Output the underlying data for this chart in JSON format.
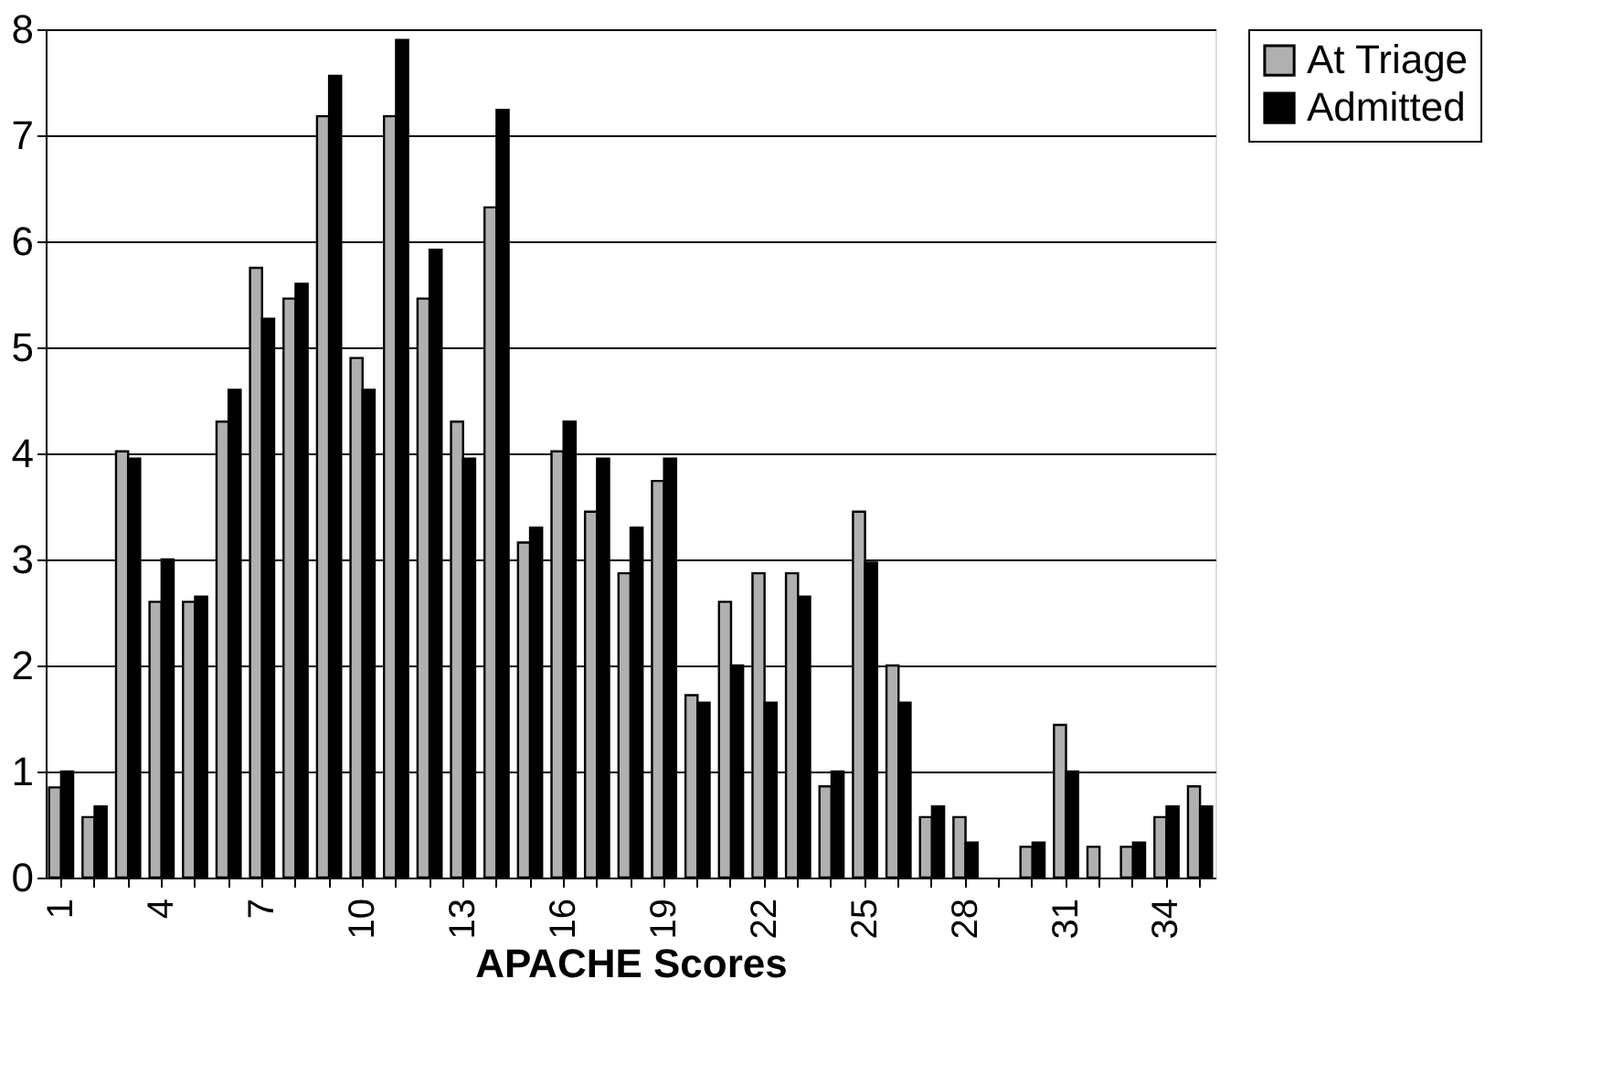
{
  "chart_data": {
    "type": "bar",
    "xlabel": "APACHE Scores",
    "categories": [
      "1",
      null,
      null,
      "4",
      null,
      null,
      "7",
      null,
      null,
      "10",
      null,
      null,
      "13",
      null,
      null,
      "16",
      null,
      null,
      "19",
      null,
      null,
      "22",
      null,
      null,
      "25",
      null,
      null,
      "28",
      null,
      null,
      "31",
      null,
      null,
      "34",
      null
    ],
    "series": [
      {
        "name": "At Triage",
        "color": "#b0b0b0",
        "values": [
          0.85,
          0.57,
          4.02,
          2.6,
          2.6,
          4.3,
          5.75,
          5.46,
          7.18,
          4.9,
          7.18,
          5.46,
          4.3,
          6.32,
          3.16,
          4.02,
          3.45,
          2.87,
          3.74,
          1.72,
          2.6,
          2.87,
          2.87,
          0.86,
          3.45,
          2.0,
          0.57,
          0.57,
          null,
          0.29,
          1.44,
          0.29,
          0.29,
          0.57,
          0.86
        ]
      },
      {
        "name": "Admitted",
        "color": "#000000",
        "values": [
          1.0,
          0.67,
          3.95,
          3.0,
          2.65,
          4.6,
          5.27,
          5.6,
          7.56,
          4.6,
          7.9,
          5.92,
          3.95,
          7.24,
          3.3,
          4.3,
          3.95,
          3.3,
          3.95,
          1.65,
          2.0,
          1.65,
          2.65,
          1.0,
          2.97,
          1.65,
          0.67,
          0.33,
          null,
          0.33,
          1.0,
          null,
          0.33,
          0.67,
          0.67
        ]
      }
    ],
    "ylim": [
      0,
      8
    ],
    "yticks": [
      0,
      1,
      2,
      3,
      4,
      5,
      6,
      7,
      8
    ],
    "grid": "y",
    "legend": "right"
  }
}
